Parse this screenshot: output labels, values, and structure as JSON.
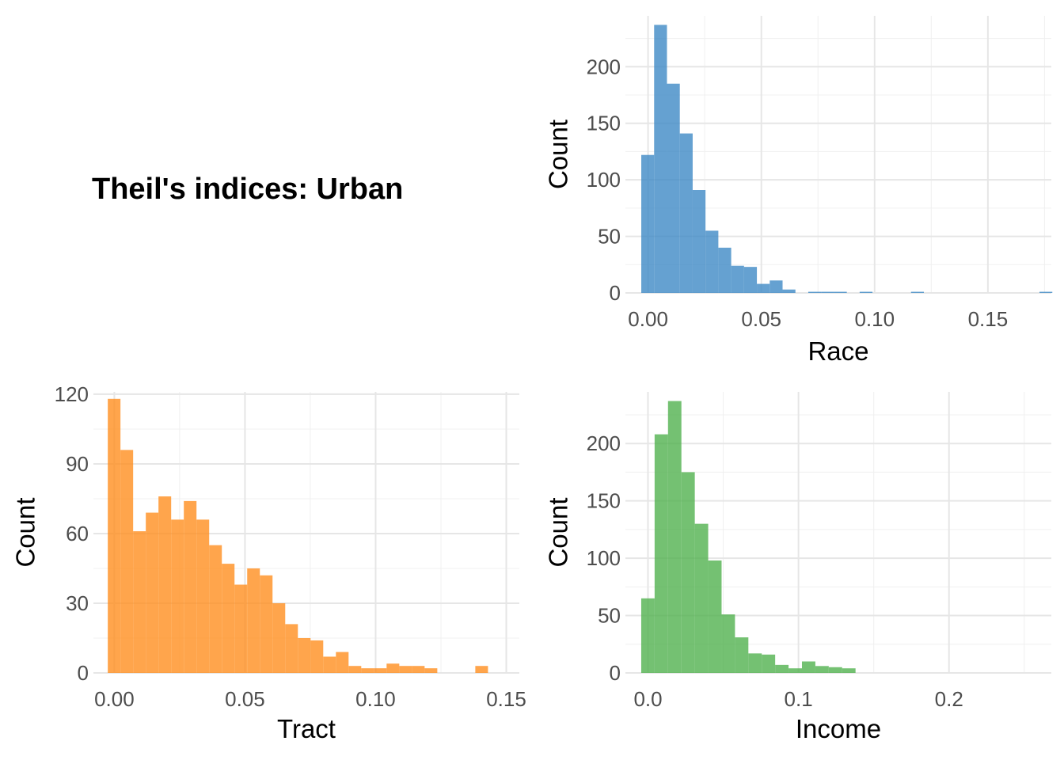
{
  "title": "Theil's indices: Urban",
  "chart_data": [
    {
      "type": "histogram",
      "name": "race",
      "color": "#3A87C4",
      "xlabel": "Race",
      "ylabel": "Count",
      "xlim": [
        -0.01,
        0.178
      ],
      "ylim": [
        0,
        245
      ],
      "xticks": [
        0.0,
        0.05,
        0.1,
        0.15
      ],
      "xtick_labels": [
        "0.00",
        "0.05",
        "0.10",
        "0.15"
      ],
      "yticks": [
        0,
        50,
        100,
        150,
        200
      ],
      "ytick_labels": [
        "0",
        "50",
        "100",
        "150",
        "200"
      ],
      "bin_start": -0.003,
      "bin_width": 0.00567,
      "counts": [
        122,
        237,
        185,
        141,
        91,
        55,
        40,
        24,
        23,
        8,
        11,
        3,
        0,
        1,
        1,
        1,
        0,
        1,
        0,
        0,
        0,
        1,
        0,
        0,
        0,
        0,
        0,
        0,
        0,
        0,
        0,
        1
      ]
    },
    {
      "type": "histogram",
      "name": "tract",
      "color": "#FF8C1A",
      "xlabel": "Tract",
      "ylabel": "Count",
      "xlim": [
        -0.008,
        0.155
      ],
      "ylim": [
        0,
        121
      ],
      "xticks": [
        0.0,
        0.05,
        0.1,
        0.15
      ],
      "xtick_labels": [
        "0.00",
        "0.05",
        "0.10",
        "0.15"
      ],
      "yticks": [
        0,
        30,
        60,
        90,
        120
      ],
      "ytick_labels": [
        "0",
        "30",
        "60",
        "90",
        "120"
      ],
      "bin_start": -0.0025,
      "bin_width": 0.00485,
      "counts": [
        118,
        96,
        61,
        69,
        76,
        66,
        74,
        66,
        55,
        47,
        38,
        45,
        42,
        30,
        21,
        15,
        14,
        7,
        9,
        3,
        2,
        2,
        4,
        3,
        3,
        2,
        0,
        0,
        0,
        3
      ]
    },
    {
      "type": "histogram",
      "name": "income",
      "color": "#4DAF4A",
      "xlabel": "Income",
      "ylabel": "Count",
      "xlim": [
        -0.015,
        0.268
      ],
      "ylim": [
        0,
        245
      ],
      "xticks": [
        0.0,
        0.1,
        0.2
      ],
      "xtick_labels": [
        "0.0",
        "0.1",
        "0.2"
      ],
      "yticks": [
        0,
        50,
        100,
        150,
        200
      ],
      "ytick_labels": [
        "0",
        "50",
        "100",
        "150",
        "200"
      ],
      "bin_start": -0.0045,
      "bin_width": 0.0089,
      "counts": [
        65,
        208,
        237,
        175,
        130,
        98,
        51,
        31,
        17,
        16,
        7,
        4,
        10,
        6,
        5,
        4,
        0,
        0,
        0,
        0,
        0,
        0,
        0,
        0,
        0,
        0,
        0,
        0,
        0,
        0,
        0,
        0,
        0,
        0,
        0,
        0,
        0,
        0,
        0,
        0,
        0,
        0,
        0,
        0,
        0,
        0,
        0,
        0,
        0,
        0
      ]
    }
  ]
}
